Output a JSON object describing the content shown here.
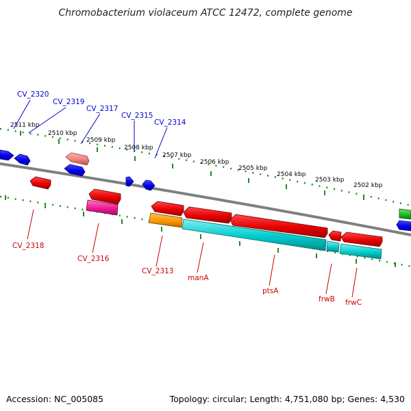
{
  "title": "Chromobacterium violaceum ATCC 12472, complete genome",
  "footer": {
    "accession": "Accession: NC_005085",
    "summary": "Topology: circular; Length: 4,751,080 bp; Genes: 4,530"
  },
  "colors": {
    "background": "#ffffff",
    "backbone": "#7f7f7f",
    "tick_dots": "#1f8a1f",
    "label_top": "#0000cc",
    "label_bottom": "#cc0000"
  },
  "ruler_labels": [
    "2511 kbp",
    "2510 kbp",
    "2509 kbp",
    "2508 kbp",
    "2507 kbp",
    "2506 kbp",
    "2505 kbp",
    "2504 kbp",
    "2503 kbp",
    "2502 kbp"
  ],
  "gene_labels_top": [
    "CV_2320",
    "CV_2319",
    "CV_2317",
    "CV_2315",
    "CV_2314"
  ],
  "gene_labels_bottom": [
    "CV_2318",
    "CV_2316",
    "CV_2313",
    "manA",
    "ptsA",
    "frwB",
    "frwC"
  ]
}
